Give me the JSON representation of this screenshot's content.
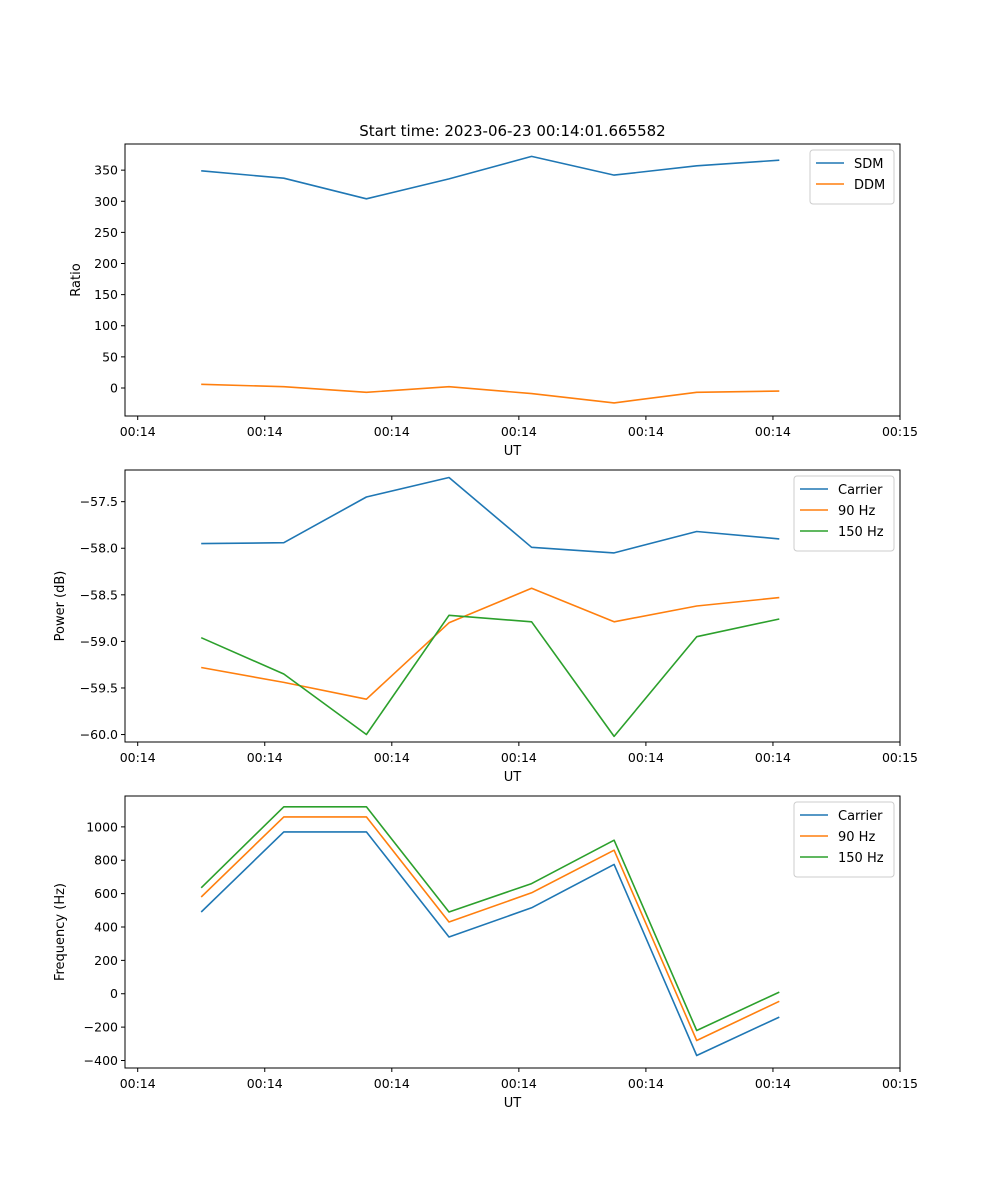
{
  "figure": {
    "title": "Start time: 2023-06-23 00:14:01.665582"
  },
  "chart_data": [
    {
      "type": "line",
      "ylabel": "Ratio",
      "xlabel": "UT",
      "xlim": [
        -0.1,
        6.0
      ],
      "x_ticks": [
        0,
        1,
        2,
        3,
        4,
        5,
        6
      ],
      "x_tick_labels": [
        "00:14",
        "00:14",
        "00:14",
        "00:14",
        "00:14",
        "00:14",
        "00:15"
      ],
      "ylim": [
        -45,
        392
      ],
      "y_ticks": [
        0,
        50,
        100,
        150,
        200,
        250,
        300,
        350
      ],
      "y_tick_labels": [
        "0",
        "50",
        "100",
        "150",
        "200",
        "250",
        "300",
        "350"
      ],
      "x": [
        0.5,
        1.15,
        1.8,
        2.45,
        3.1,
        3.75,
        4.4,
        5.05
      ],
      "legend": "upper right",
      "series": [
        {
          "name": "SDM",
          "color": "#1f77b4",
          "values": [
            349,
            337,
            304,
            336,
            372,
            342,
            357,
            366
          ]
        },
        {
          "name": "DDM",
          "color": "#ff7f0e",
          "values": [
            6,
            2,
            -7,
            2,
            -9,
            -24,
            -7,
            -5
          ]
        }
      ]
    },
    {
      "type": "line",
      "ylabel": "Power (dB)",
      "xlabel": "UT",
      "xlim": [
        -0.1,
        6.0
      ],
      "x_ticks": [
        0,
        1,
        2,
        3,
        4,
        5,
        6
      ],
      "x_tick_labels": [
        "00:14",
        "00:14",
        "00:14",
        "00:14",
        "00:14",
        "00:14",
        "00:15"
      ],
      "ylim": [
        -60.08,
        -57.16
      ],
      "y_ticks": [
        -60.0,
        -59.5,
        -59.0,
        -58.5,
        -58.0,
        -57.5
      ],
      "y_tick_labels": [
        "−60.0",
        "−59.5",
        "−59.0",
        "−58.5",
        "−58.0",
        "−57.5"
      ],
      "x": [
        0.5,
        1.15,
        1.8,
        2.45,
        3.1,
        3.75,
        4.4,
        5.05
      ],
      "legend": "upper right",
      "series": [
        {
          "name": "Carrier",
          "color": "#1f77b4",
          "values": [
            -57.95,
            -57.94,
            -57.45,
            -57.24,
            -57.99,
            -58.05,
            -57.82,
            -57.9
          ]
        },
        {
          "name": "90 Hz",
          "color": "#ff7f0e",
          "values": [
            -59.28,
            -59.44,
            -59.62,
            -58.8,
            -58.43,
            -58.79,
            -58.62,
            -58.53
          ]
        },
        {
          "name": "150 Hz",
          "color": "#2ca02c",
          "values": [
            -58.96,
            -59.35,
            -60.0,
            -58.72,
            -58.79,
            -60.02,
            -58.95,
            -58.76
          ]
        }
      ]
    },
    {
      "type": "line",
      "ylabel": "Frequency (Hz)",
      "xlabel": "UT",
      "xlim": [
        -0.1,
        6.0
      ],
      "x_ticks": [
        0,
        1,
        2,
        3,
        4,
        5,
        6
      ],
      "x_tick_labels": [
        "00:14",
        "00:14",
        "00:14",
        "00:14",
        "00:14",
        "00:14",
        "00:15"
      ],
      "ylim": [
        -445,
        1185
      ],
      "y_ticks": [
        -400,
        -200,
        0,
        200,
        400,
        600,
        800,
        1000
      ],
      "y_tick_labels": [
        "−400",
        "−200",
        "0",
        "200",
        "400",
        "600",
        "800",
        "1000"
      ],
      "x": [
        0.5,
        1.15,
        1.8,
        2.45,
        3.1,
        3.75,
        4.4,
        5.05
      ],
      "legend": "upper right",
      "series": [
        {
          "name": "Carrier",
          "color": "#1f77b4",
          "values": [
            490,
            970,
            970,
            340,
            515,
            775,
            -370,
            -140
          ]
        },
        {
          "name": "90 Hz",
          "color": "#ff7f0e",
          "values": [
            580,
            1060,
            1060,
            430,
            605,
            860,
            -280,
            -45
          ]
        },
        {
          "name": "150 Hz",
          "color": "#2ca02c",
          "values": [
            635,
            1120,
            1120,
            490,
            660,
            920,
            -220,
            10
          ]
        }
      ]
    }
  ]
}
